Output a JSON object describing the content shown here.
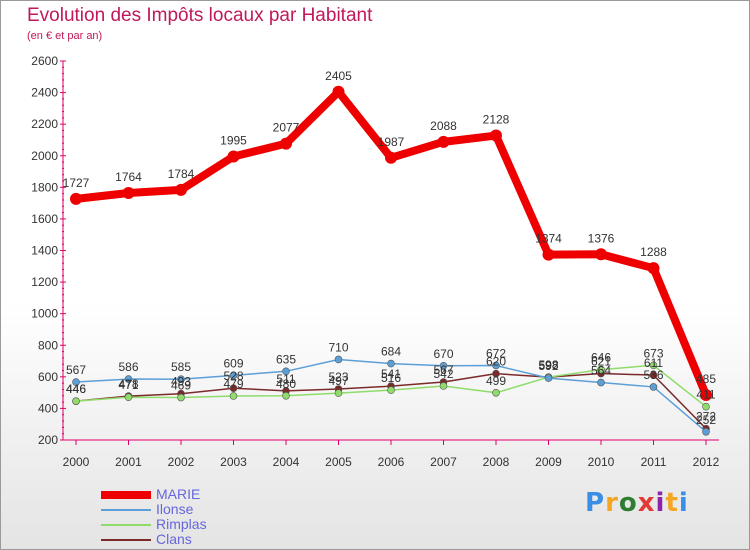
{
  "title": "Evolution des Impôts locaux par Habitant",
  "subtitle": "(en € et par an)",
  "logo": [
    "P",
    "r",
    "o",
    "x",
    "i",
    "t",
    "i"
  ],
  "logo_colors": [
    "#3a8ee6",
    "#f5a623",
    "#2e7d32",
    "#e53935",
    "#8e24aa",
    "#f5a623",
    "#3a8ee6"
  ],
  "chart_data": {
    "type": "line",
    "x": [
      "2000",
      "2001",
      "2002",
      "2003",
      "2004",
      "2005",
      "2006",
      "2007",
      "2008",
      "2009",
      "2010",
      "2011",
      "2012"
    ],
    "ylim": [
      200,
      2600
    ],
    "yticks": [
      "200",
      "400",
      "600",
      "800",
      "1000",
      "1200",
      "1400",
      "1600",
      "1800",
      "2000",
      "2200",
      "2400",
      "2600"
    ],
    "grid": false,
    "legend_position": "bottom-left",
    "series": [
      {
        "name": "MARIE",
        "color": "#ee0000",
        "values": [
          1727,
          1764,
          1784,
          1995,
          2077,
          2405,
          1987,
          2088,
          2128,
          1374,
          1376,
          1288,
          485
        ],
        "labels": [
          "1727",
          "1764",
          "1784",
          "1995",
          "2077",
          "2405",
          "1987",
          "2088",
          "2128",
          "1374",
          "1376",
          "1288",
          "485"
        ]
      },
      {
        "name": "Ilonse",
        "color": "#5c9fd6",
        "values": [
          567,
          586,
          585,
          609,
          635,
          710,
          684,
          670,
          672,
          592,
          564,
          536,
          252
        ],
        "labels": [
          "567",
          "586",
          "585",
          "609",
          "635",
          "710",
          "684",
          "670",
          "672",
          "592",
          "564",
          "536",
          "252"
        ]
      },
      {
        "name": "Rimplas",
        "color": "#8fdc6a",
        "values": [
          446,
          471,
          469,
          479,
          480,
          497,
          516,
          542,
          499,
          598,
          646,
          673,
          411
        ],
        "labels": [
          "446",
          "471",
          "469",
          "479",
          "480",
          "497",
          "516",
          "542",
          "499",
          "598",
          "646",
          "673",
          "411"
        ]
      },
      {
        "name": "Clans",
        "color": "#7b2a2a",
        "values": [
          446,
          478,
          493,
          528,
          511,
          523,
          541,
          567,
          620,
          598,
          621,
          611,
          272
        ],
        "labels": [
          "446",
          "478",
          "493",
          "528",
          "511",
          "523",
          "541",
          "567",
          "620",
          "598",
          "621",
          "611",
          "272"
        ]
      }
    ]
  }
}
